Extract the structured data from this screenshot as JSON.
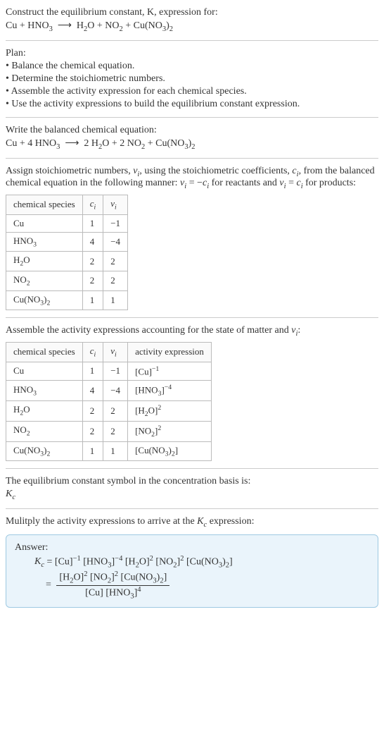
{
  "intro": {
    "line1": "Construct the equilibrium constant, K, expression for:",
    "eq_html": "Cu + HNO<span class='sub'>3</span>&nbsp;&nbsp;⟶&nbsp;&nbsp;H<span class='sub'>2</span>O + NO<span class='sub'>2</span> + Cu(NO<span class='sub'>3</span>)<span class='sub'>2</span>"
  },
  "plan": {
    "title": "Plan:",
    "items": [
      "• Balance the chemical equation.",
      "• Determine the stoichiometric numbers.",
      "• Assemble the activity expression for each chemical species.",
      "• Use the activity expressions to build the equilibrium constant expression."
    ]
  },
  "balance": {
    "title": "Write the balanced chemical equation:",
    "eq_html": "Cu + 4 HNO<span class='sub'>3</span>&nbsp;&nbsp;⟶&nbsp;&nbsp;2 H<span class='sub'>2</span>O + 2 NO<span class='sub'>2</span> + Cu(NO<span class='sub'>3</span>)<span class='sub'>2</span>"
  },
  "stoich": {
    "intro_html": "Assign stoichiometric numbers, <span class='ital'>ν<span class='sub'>i</span></span>, using the stoichiometric coefficients, <span class='ital'>c<span class='sub'>i</span></span>, from the balanced chemical equation in the following manner: <span class='ital'>ν<span class='sub'>i</span></span> = −<span class='ital'>c<span class='sub'>i</span></span> for reactants and <span class='ital'>ν<span class='sub'>i</span></span> = <span class='ital'>c<span class='sub'>i</span></span> for products:",
    "headers": {
      "species": "chemical species",
      "ci_html": "<span class='ital'>c<span class='sub'>i</span></span>",
      "vi_html": "<span class='ital'>ν<span class='sub'>i</span></span>"
    },
    "rows": [
      {
        "sp": "Cu",
        "ci": "1",
        "vi": "−1"
      },
      {
        "sp_html": "HNO<span class='sub'>3</span>",
        "ci": "4",
        "vi": "−4"
      },
      {
        "sp_html": "H<span class='sub'>2</span>O",
        "ci": "2",
        "vi": "2"
      },
      {
        "sp_html": "NO<span class='sub'>2</span>",
        "ci": "2",
        "vi": "2"
      },
      {
        "sp_html": "Cu(NO<span class='sub'>3</span>)<span class='sub'>2</span>",
        "ci": "1",
        "vi": "1"
      }
    ]
  },
  "activity": {
    "intro_html": "Assemble the activity expressions accounting for the state of matter and <span class='ital'>ν<span class='sub'>i</span></span>:",
    "headers": {
      "species": "chemical species",
      "ci_html": "<span class='ital'>c<span class='sub'>i</span></span>",
      "vi_html": "<span class='ital'>ν<span class='sub'>i</span></span>",
      "act": "activity expression"
    },
    "rows": [
      {
        "sp": "Cu",
        "ci": "1",
        "vi": "−1",
        "act_html": "[Cu]<span class='sup'>−1</span>"
      },
      {
        "sp_html": "HNO<span class='sub'>3</span>",
        "ci": "4",
        "vi": "−4",
        "act_html": "[HNO<span class='sub'>3</span>]<span class='sup'>−4</span>"
      },
      {
        "sp_html": "H<span class='sub'>2</span>O",
        "ci": "2",
        "vi": "2",
        "act_html": "[H<span class='sub'>2</span>O]<span class='sup'>2</span>"
      },
      {
        "sp_html": "NO<span class='sub'>2</span>",
        "ci": "2",
        "vi": "2",
        "act_html": "[NO<span class='sub'>2</span>]<span class='sup'>2</span>"
      },
      {
        "sp_html": "Cu(NO<span class='sub'>3</span>)<span class='sub'>2</span>",
        "ci": "1",
        "vi": "1",
        "act_html": "[Cu(NO<span class='sub'>3</span>)<span class='sub'>2</span>]"
      }
    ]
  },
  "kc_text1": "The equilibrium constant symbol in the concentration basis is:",
  "kc_sym_html": "<span class='ital'>K<span class='sub'>c</span></span>",
  "multiply_html": "Mulitply the activity expressions to arrive at the <span class='ital'>K<span class='sub'>c</span></span> expression:",
  "answer": {
    "label": "Answer:",
    "line1_html": "<span class='ital'>K<span class='sub'>c</span></span> = [Cu]<span class='sup'>−1</span> [HNO<span class='sub'>3</span>]<span class='sup'>−4</span> [H<span class='sub'>2</span>O]<span class='sup'>2</span> [NO<span class='sub'>2</span>]<span class='sup'>2</span> [Cu(NO<span class='sub'>3</span>)<span class='sub'>2</span>]",
    "frac_eq": " = ",
    "num_html": "[H<span class='sub'>2</span>O]<span class='sup'>2</span> [NO<span class='sub'>2</span>]<span class='sup'>2</span> [Cu(NO<span class='sub'>3</span>)<span class='sub'>2</span>]",
    "den_html": "[Cu] [HNO<span class='sub'>3</span>]<span class='sup'>4</span>"
  }
}
